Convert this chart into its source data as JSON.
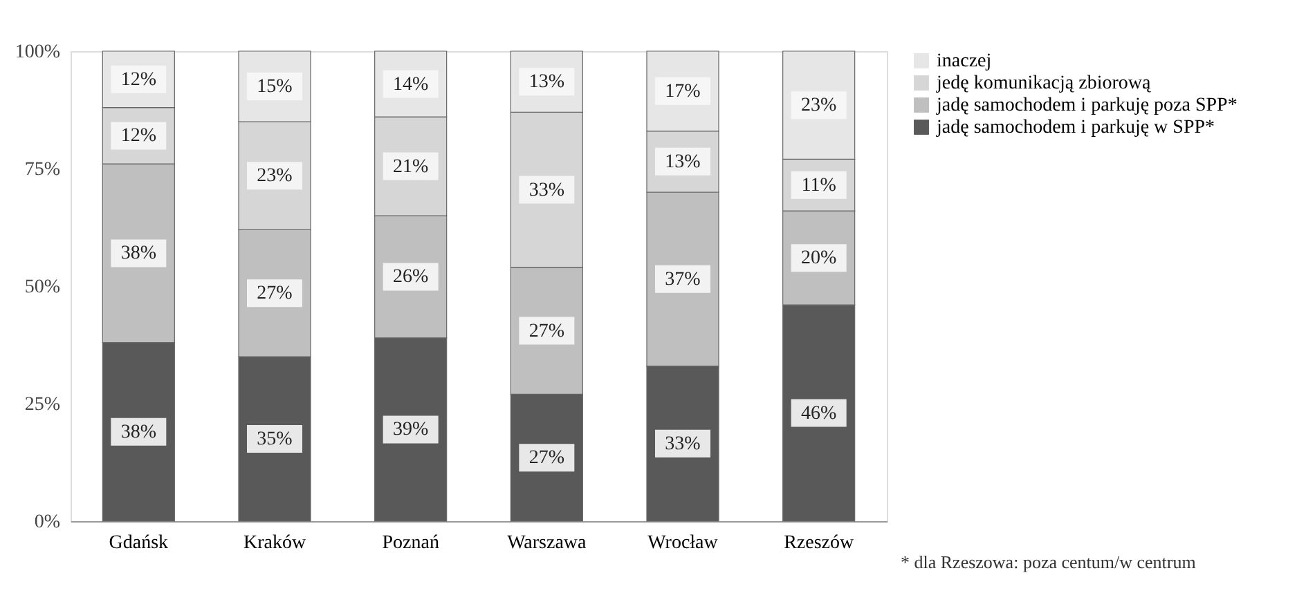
{
  "chart_data": {
    "type": "bar",
    "stacked": true,
    "categories": [
      "Gdańsk",
      "Kraków",
      "Poznań",
      "Warszawa",
      "Wrocław",
      "Rzeszów"
    ],
    "series": [
      {
        "name": "jadę samochodem i parkuję w SPP*",
        "color": "#595959",
        "values": [
          38,
          35,
          39,
          27,
          33,
          46
        ],
        "value_labels": [
          "38%",
          "35%",
          "39%",
          "27%",
          "33%",
          "46%"
        ]
      },
      {
        "name": "jadę samochodem i parkuję poza SPP*",
        "color": "#bfbfbf",
        "values": [
          38,
          27,
          26,
          27,
          37,
          20
        ],
        "value_labels": [
          "38%",
          "27%",
          "26%",
          "27%",
          "37%",
          "20%"
        ]
      },
      {
        "name": "jedę komunikacją zbiorową",
        "color": "#d6d6d6",
        "values": [
          12,
          23,
          21,
          33,
          13,
          11
        ],
        "value_labels": [
          "12%",
          "23%",
          "21%",
          "33%",
          "13%",
          "11%"
        ]
      },
      {
        "name": "inaczej",
        "color": "#e6e6e6",
        "values": [
          12,
          15,
          14,
          13,
          17,
          23
        ],
        "value_labels": [
          "12%",
          "15%",
          "14%",
          "13%",
          "17%",
          "23%"
        ]
      }
    ],
    "ylim": [
      0,
      100
    ],
    "yticks": [
      {
        "value": 0,
        "label": "0%"
      },
      {
        "value": 25,
        "label": "25%"
      },
      {
        "value": 50,
        "label": "50%"
      },
      {
        "value": 75,
        "label": "75%"
      },
      {
        "value": 100,
        "label": "100%"
      }
    ],
    "grid": false,
    "legend": "right",
    "annotations": [
      "* dla  Rzeszowa: poza centum/w centrum"
    ]
  }
}
